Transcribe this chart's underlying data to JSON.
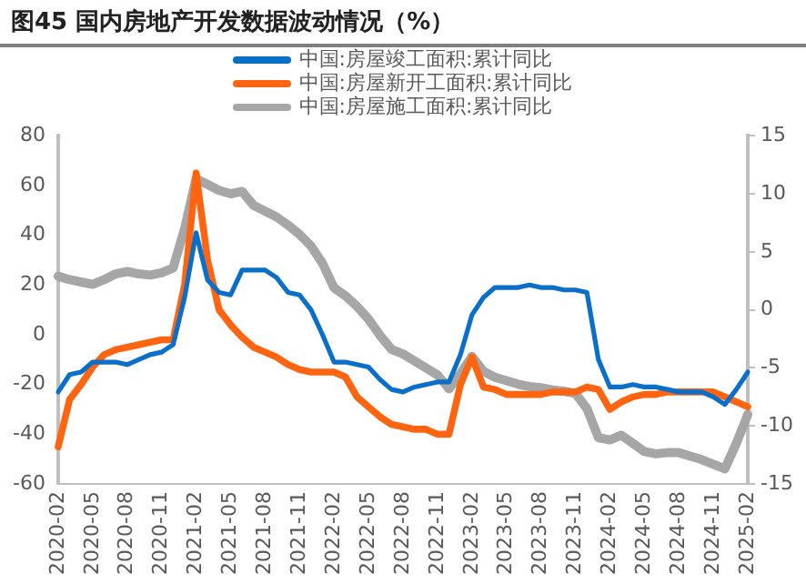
{
  "chart_data": {
    "type": "line",
    "title": "图45 国内房地产开发数据波动情况（%）",
    "categories": [
      "2020-02",
      null,
      null,
      "2020-05",
      null,
      null,
      "2020-08",
      null,
      null,
      "2020-11",
      null,
      null,
      "2021-02",
      null,
      null,
      "2021-05",
      null,
      null,
      "2021-08",
      null,
      null,
      "2021-11",
      null,
      null,
      "2022-02",
      null,
      null,
      "2022-05",
      null,
      null,
      "2022-08",
      null,
      null,
      "2022-11",
      null,
      null,
      "2023-02",
      null,
      null,
      "2023-05",
      null,
      null,
      "2023-08",
      null,
      null,
      "2023-11",
      null,
      null,
      "2024-02",
      null,
      null,
      "2024-05",
      null,
      null,
      "2024-08",
      null,
      null,
      "2024-11",
      null,
      null,
      "2025-02"
    ],
    "series": [
      {
        "name": "中国:房屋竣工面积:累计同比",
        "color": "#0a6fc8",
        "values": [
          -23,
          -16,
          -15,
          -11,
          -11,
          -11,
          -12,
          -10,
          -8,
          -7,
          -4,
          15,
          41,
          22,
          17,
          16,
          26,
          26,
          26,
          23,
          17,
          16,
          10,
          0,
          -11,
          -11,
          -12,
          -13,
          -18,
          -22,
          -23,
          -21,
          -20,
          -19,
          -19,
          -8,
          8,
          15,
          19,
          19,
          19,
          20,
          19,
          19,
          18,
          18,
          17,
          -10,
          -21,
          -21,
          -20,
          -21,
          -21,
          -22,
          -23,
          -23,
          -23,
          -25,
          -28,
          -22,
          -15
        ]
      },
      {
        "name": "中国:房屋新开工面积:累计同比",
        "color": "#ff6410",
        "values": [
          -45,
          -26,
          -20,
          -13,
          -8,
          -6,
          -5,
          -4,
          -3,
          -2,
          -2,
          20,
          65,
          30,
          10,
          4,
          -1,
          -5,
          -7,
          -9,
          -12,
          -14,
          -15,
          -15,
          -15,
          -17,
          -25,
          -29,
          -33,
          -36,
          -37,
          -38,
          -38,
          -40,
          -40,
          -20,
          -9,
          -21,
          -22,
          -24,
          -24,
          -24,
          -24,
          -23,
          -23,
          -23,
          -21,
          -22,
          -30,
          -27,
          -25,
          -24,
          -24,
          -23,
          -23,
          -23,
          -23,
          -23,
          -25,
          -27,
          -29
        ]
      },
      {
        "name": "中国:房屋施工面积:累计同比",
        "color": "#a6a6a6",
        "axis": "y2",
        "values": [
          2.9,
          2.6,
          2.4,
          2.2,
          2.6,
          3.1,
          3.3,
          3.1,
          3.0,
          3.2,
          3.6,
          7,
          11.3,
          10.8,
          10.3,
          10,
          10.2,
          9,
          8.5,
          8,
          7.3,
          6.5,
          5.5,
          4,
          1.9,
          1.2,
          0.3,
          -0.8,
          -2.2,
          -3.4,
          -3.8,
          -4.4,
          -5,
          -5.6,
          -6.8,
          -5.5,
          -4,
          -5.3,
          -5.8,
          -6.1,
          -6.4,
          -6.6,
          -6.7,
          -6.9,
          -7,
          -7.2,
          -8.5,
          -11,
          -11.2,
          -10.8,
          -11.5,
          -12.2,
          -12.4,
          -12.3,
          -12.3,
          -12.6,
          -12.9,
          -13.3,
          -13.7,
          -11.5,
          -9
        ]
      }
    ],
    "ylim": [
      -60,
      80
    ],
    "yticks": [
      -60,
      -40,
      -20,
      0,
      20,
      40,
      60,
      80
    ],
    "y2lim": [
      -15,
      15
    ],
    "y2ticks": [
      -15,
      -10,
      -5,
      0,
      5,
      10,
      15
    ],
    "grid": false,
    "legend": "top",
    "marker": "none",
    "line_style": "solid"
  }
}
